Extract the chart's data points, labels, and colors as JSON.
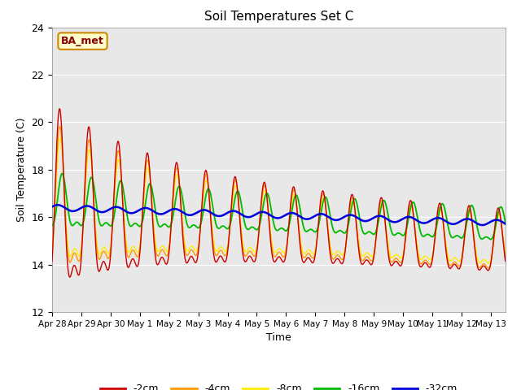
{
  "title": "Soil Temperatures Set C",
  "xlabel": "Time",
  "ylabel": "Soil Temperature (C)",
  "ylim": [
    12,
    24
  ],
  "yticks": [
    12,
    14,
    16,
    18,
    20,
    22,
    24
  ],
  "colors": {
    "-2cm": "#cc0000",
    "-4cm": "#ff9900",
    "-8cm": "#ffee00",
    "-16cm": "#00bb00",
    "-32cm": "#0000dd"
  },
  "annotation_text": "BA_met",
  "background_color": "#e8e8e8",
  "x_tick_labels": [
    "Apr 28",
    "Apr 29",
    "Apr 30",
    "May 1",
    "May 2",
    "May 3",
    "May 4",
    "May 5",
    "May 6",
    "May 7",
    "May 8",
    "May 9",
    "May 10",
    "May 11",
    "May 12",
    "May 13"
  ],
  "num_days": 15.5,
  "samples_per_day": 48
}
